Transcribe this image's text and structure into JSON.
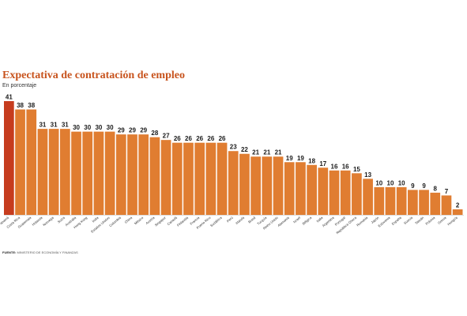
{
  "chart_data": {
    "type": "bar",
    "title": "Expectativa de contratación de empleo",
    "subtitle": "En porcentaje",
    "source_label": "FUENTE:",
    "source": "MINISTERIO DE ECONOMÍA Y FINANZAS",
    "xlabel": "",
    "ylabel": "",
    "ylim": [
      0,
      41
    ],
    "grid": false,
    "highlight_color": "#c63c1e",
    "bar_color": "#e07d31",
    "categories": [
      "Panamá",
      "Costa Rica",
      "Guatemala",
      "Holanda",
      "Noruega",
      "Suiza",
      "Australia",
      "Hong Kong",
      "India",
      "Estados Unidos",
      "Colombia",
      "China",
      "México",
      "Austria",
      "Singapur",
      "Canadá",
      "Finlandia",
      "Francia",
      "Puerto Rico",
      "Sudáfrica",
      "Perú",
      "Irlanda",
      "Brasil",
      "Turquía",
      "Reino Unido",
      "Alemania",
      "Israel",
      "Bélgica",
      "Italia",
      "Argentina",
      "Portugal",
      "República Checa",
      "Rumania",
      "Japón",
      "Eslovenia",
      "España",
      "Suecia",
      "Taiwán",
      "Polonia",
      "Grecia",
      "Hungría"
    ],
    "values": [
      41,
      38,
      38,
      31,
      31,
      31,
      30,
      30,
      30,
      30,
      29,
      29,
      29,
      28,
      27,
      26,
      26,
      26,
      26,
      26,
      23,
      22,
      21,
      21,
      21,
      19,
      19,
      18,
      17,
      16,
      16,
      15,
      13,
      10,
      10,
      10,
      9,
      9,
      8,
      7,
      2
    ]
  }
}
